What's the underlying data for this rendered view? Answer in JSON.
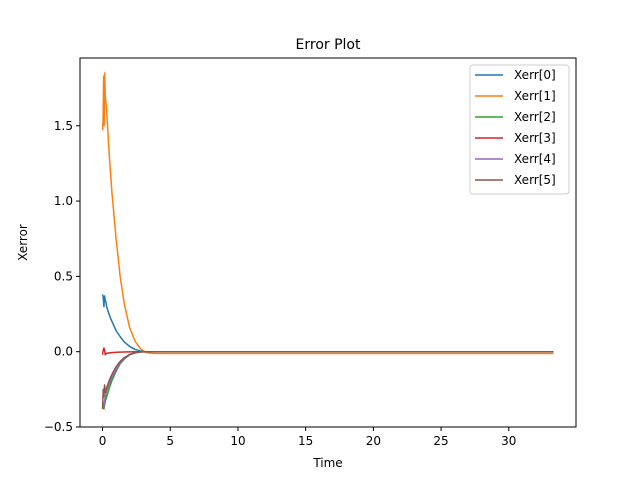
{
  "chart_data": {
    "type": "line",
    "title": "Error Plot",
    "xlabel": "Time",
    "ylabel": "Xerror",
    "xlim": [
      -1.665,
      34.965
    ],
    "ylim": [
      -0.5,
      1.95
    ],
    "xticks": [
      0,
      5,
      10,
      15,
      20,
      25,
      30
    ],
    "yticks": [
      -0.5,
      0.0,
      0.5,
      1.0,
      1.5
    ],
    "ytick_labels": [
      "−0.5",
      "0.0",
      "0.5",
      "1.0",
      "1.5"
    ],
    "grid": false,
    "legend": "top-right",
    "series": [
      {
        "name": "Xerr[0]",
        "color": "#1f77b4",
        "x": [
          0,
          0.05,
          0.1,
          0.15,
          0.2,
          0.25,
          0.3,
          0.4,
          0.6,
          0.8,
          1.0,
          1.3,
          1.6,
          2.0,
          2.4,
          2.8,
          3.2,
          4,
          6,
          10,
          20,
          33.3
        ],
        "y": [
          0.38,
          0.36,
          0.3,
          0.37,
          0.34,
          0.33,
          0.3,
          0.27,
          0.22,
          0.18,
          0.14,
          0.1,
          0.065,
          0.035,
          0.015,
          0.005,
          0.0,
          0.0,
          0.0,
          0.0,
          0.0,
          0.0
        ]
      },
      {
        "name": "Xerr[1]",
        "color": "#ff7f0e",
        "x": [
          0,
          0.04,
          0.08,
          0.12,
          0.16,
          0.2,
          0.3,
          0.5,
          0.7,
          1.0,
          1.3,
          1.6,
          2.0,
          2.4,
          2.8,
          3.2,
          3.6,
          4,
          6,
          10,
          20,
          33.3
        ],
        "y": [
          1.47,
          1.55,
          1.83,
          1.5,
          1.85,
          1.7,
          1.6,
          1.3,
          1.05,
          0.75,
          0.5,
          0.32,
          0.16,
          0.07,
          0.02,
          -0.005,
          -0.01,
          -0.012,
          -0.012,
          -0.012,
          -0.012,
          -0.012
        ]
      },
      {
        "name": "Xerr[2]",
        "color": "#2ca02c",
        "x": [
          0,
          0.1,
          0.2,
          0.3,
          0.5,
          0.7,
          1.0,
          1.3,
          1.6,
          2.0,
          2.4,
          2.8,
          3.2,
          4,
          6,
          10,
          20,
          33.3
        ],
        "y": [
          -0.37,
          -0.38,
          -0.33,
          -0.3,
          -0.24,
          -0.19,
          -0.13,
          -0.08,
          -0.05,
          -0.02,
          -0.008,
          -0.002,
          0.0,
          0.0,
          0.0,
          0.0,
          0.0,
          0.0
        ]
      },
      {
        "name": "Xerr[3]",
        "color": "#d62728",
        "x": [
          0,
          0.05,
          0.1,
          0.15,
          0.2,
          0.25,
          0.3,
          0.5,
          0.8,
          1.2,
          1.6,
          2.0,
          2.5,
          3.0,
          4,
          6,
          10,
          20,
          33.3
        ],
        "y": [
          -0.02,
          0.01,
          0.025,
          0.01,
          -0.02,
          -0.015,
          -0.01,
          -0.008,
          -0.005,
          -0.003,
          -0.002,
          -0.001,
          0.0,
          0.0,
          0.0,
          0.0,
          0.0,
          0.0,
          0.0
        ]
      },
      {
        "name": "Xerr[4]",
        "color": "#9467bd",
        "x": [
          0,
          0.1,
          0.2,
          0.3,
          0.5,
          0.7,
          1.0,
          1.3,
          1.6,
          2.0,
          2.4,
          2.8,
          3.2,
          4,
          6,
          10,
          20,
          33.3
        ],
        "y": [
          -0.36,
          -0.36,
          -0.3,
          -0.26,
          -0.21,
          -0.17,
          -0.12,
          -0.075,
          -0.045,
          -0.02,
          -0.007,
          -0.002,
          0.0,
          0.0,
          0.0,
          0.0,
          0.0,
          0.0
        ]
      },
      {
        "name": "Xerr[5]",
        "color": "#8c564b",
        "x": [
          0,
          0.05,
          0.1,
          0.15,
          0.2,
          0.3,
          0.5,
          0.7,
          1.0,
          1.3,
          1.6,
          2.0,
          2.4,
          2.8,
          3.2,
          4,
          6,
          10,
          20,
          33.3
        ],
        "y": [
          -0.38,
          -0.25,
          -0.3,
          -0.22,
          -0.27,
          -0.24,
          -0.19,
          -0.15,
          -0.1,
          -0.065,
          -0.04,
          -0.018,
          -0.006,
          -0.001,
          0.0,
          0.0,
          0.0,
          0.0,
          0.0,
          0.0
        ]
      }
    ]
  }
}
